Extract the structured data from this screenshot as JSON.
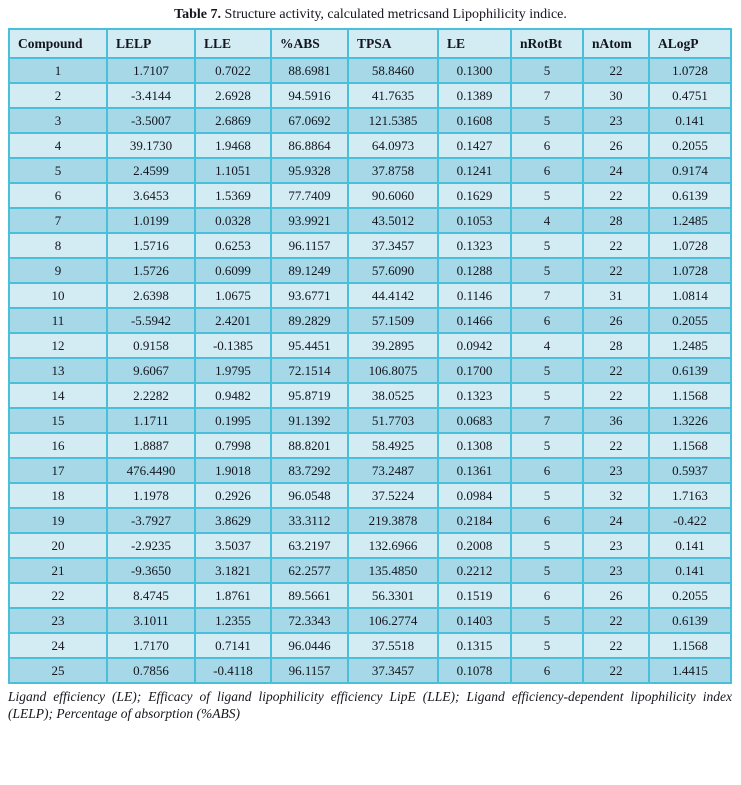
{
  "caption": {
    "label": "Table 7.",
    "text": " Structure activity, calculated metricsand Lipophilicity indice."
  },
  "table": {
    "headers": [
      "Compound",
      "LELP",
      "LLE",
      "%ABS",
      "TPSA",
      "LE",
      "nRotBt",
      "nAtom",
      "ALogP"
    ],
    "rows": [
      [
        "1",
        "1.7107",
        "0.7022",
        "88.6981",
        "58.8460",
        "0.1300",
        "5",
        "22",
        "1.0728"
      ],
      [
        "2",
        "-3.4144",
        "2.6928",
        "94.5916",
        "41.7635",
        "0.1389",
        "7",
        "30",
        "0.4751"
      ],
      [
        "3",
        "-3.5007",
        "2.6869",
        "67.0692",
        "121.5385",
        "0.1608",
        "5",
        "23",
        "0.141"
      ],
      [
        "4",
        "39.1730",
        "1.9468",
        "86.8864",
        "64.0973",
        "0.1427",
        "6",
        "26",
        "0.2055"
      ],
      [
        "5",
        "2.4599",
        "1.1051",
        "95.9328",
        "37.8758",
        "0.1241",
        "6",
        "24",
        "0.9174"
      ],
      [
        "6",
        "3.6453",
        "1.5369",
        "77.7409",
        "90.6060",
        "0.1629",
        "5",
        "22",
        "0.6139"
      ],
      [
        "7",
        "1.0199",
        "0.0328",
        "93.9921",
        "43.5012",
        "0.1053",
        "4",
        "28",
        "1.2485"
      ],
      [
        "8",
        "1.5716",
        "0.6253",
        "96.1157",
        "37.3457",
        "0.1323",
        "5",
        "22",
        "1.0728"
      ],
      [
        "9",
        "1.5726",
        "0.6099",
        "89.1249",
        "57.6090",
        "0.1288",
        "5",
        "22",
        "1.0728"
      ],
      [
        "10",
        "2.6398",
        "1.0675",
        "93.6771",
        "44.4142",
        "0.1146",
        "7",
        "31",
        "1.0814"
      ],
      [
        "11",
        "-5.5942",
        "2.4201",
        "89.2829",
        "57.1509",
        "0.1466",
        "6",
        "26",
        "0.2055"
      ],
      [
        "12",
        "0.9158",
        "-0.1385",
        "95.4451",
        "39.2895",
        "0.0942",
        "4",
        "28",
        "1.2485"
      ],
      [
        "13",
        "9.6067",
        "1.9795",
        "72.1514",
        "106.8075",
        "0.1700",
        "5",
        "22",
        "0.6139"
      ],
      [
        "14",
        "2.2282",
        "0.9482",
        "95.8719",
        "38.0525",
        "0.1323",
        "5",
        "22",
        "1.1568"
      ],
      [
        "15",
        "1.1711",
        "0.1995",
        "91.1392",
        "51.7703",
        "0.0683",
        "7",
        "36",
        "1.3226"
      ],
      [
        "16",
        "1.8887",
        "0.7998",
        "88.8201",
        "58.4925",
        "0.1308",
        "5",
        "22",
        "1.1568"
      ],
      [
        "17",
        "476.4490",
        "1.9018",
        "83.7292",
        "73.2487",
        "0.1361",
        "6",
        "23",
        "0.5937"
      ],
      [
        "18",
        "1.1978",
        "0.2926",
        "96.0548",
        "37.5224",
        "0.0984",
        "5",
        "32",
        "1.7163"
      ],
      [
        "19",
        "-3.7927",
        "3.8629",
        "33.3112",
        "219.3878",
        "0.2184",
        "6",
        "24",
        "-0.422"
      ],
      [
        "20",
        "-2.9235",
        "3.5037",
        "63.2197",
        "132.6966",
        "0.2008",
        "5",
        "23",
        "0.141"
      ],
      [
        "21",
        "-9.3650",
        "3.1821",
        "62.2577",
        "135.4850",
        "0.2212",
        "5",
        "23",
        "0.141"
      ],
      [
        "22",
        "8.4745",
        "1.8761",
        "89.5661",
        "56.3301",
        "0.1519",
        "6",
        "26",
        "0.2055"
      ],
      [
        "23",
        "3.1011",
        "1.2355",
        "72.3343",
        "106.2774",
        "0.1403",
        "5",
        "22",
        "0.6139"
      ],
      [
        "24",
        "1.7170",
        "0.7141",
        "96.0446",
        "37.5518",
        "0.1315",
        "5",
        "22",
        "1.1568"
      ],
      [
        "25",
        "0.7856",
        "-0.4118",
        "96.1157",
        "37.3457",
        "0.1078",
        "6",
        "22",
        "1.4415"
      ]
    ]
  },
  "footnote": "Ligand efficiency (LE); Efficacy of ligand lipophilicity efficiency LipE (LLE); Ligand efficiency-dependent lipophilicity index (LELP); Percentage of absorption (%ABS)",
  "colors": {
    "row_odd": "#a6d8e7",
    "row_even": "#d3ecf4",
    "header_bg": "#d3ecf4",
    "grid_line": "#49bfda",
    "outer_border": "#1c1c1a",
    "text": "#15151d"
  }
}
